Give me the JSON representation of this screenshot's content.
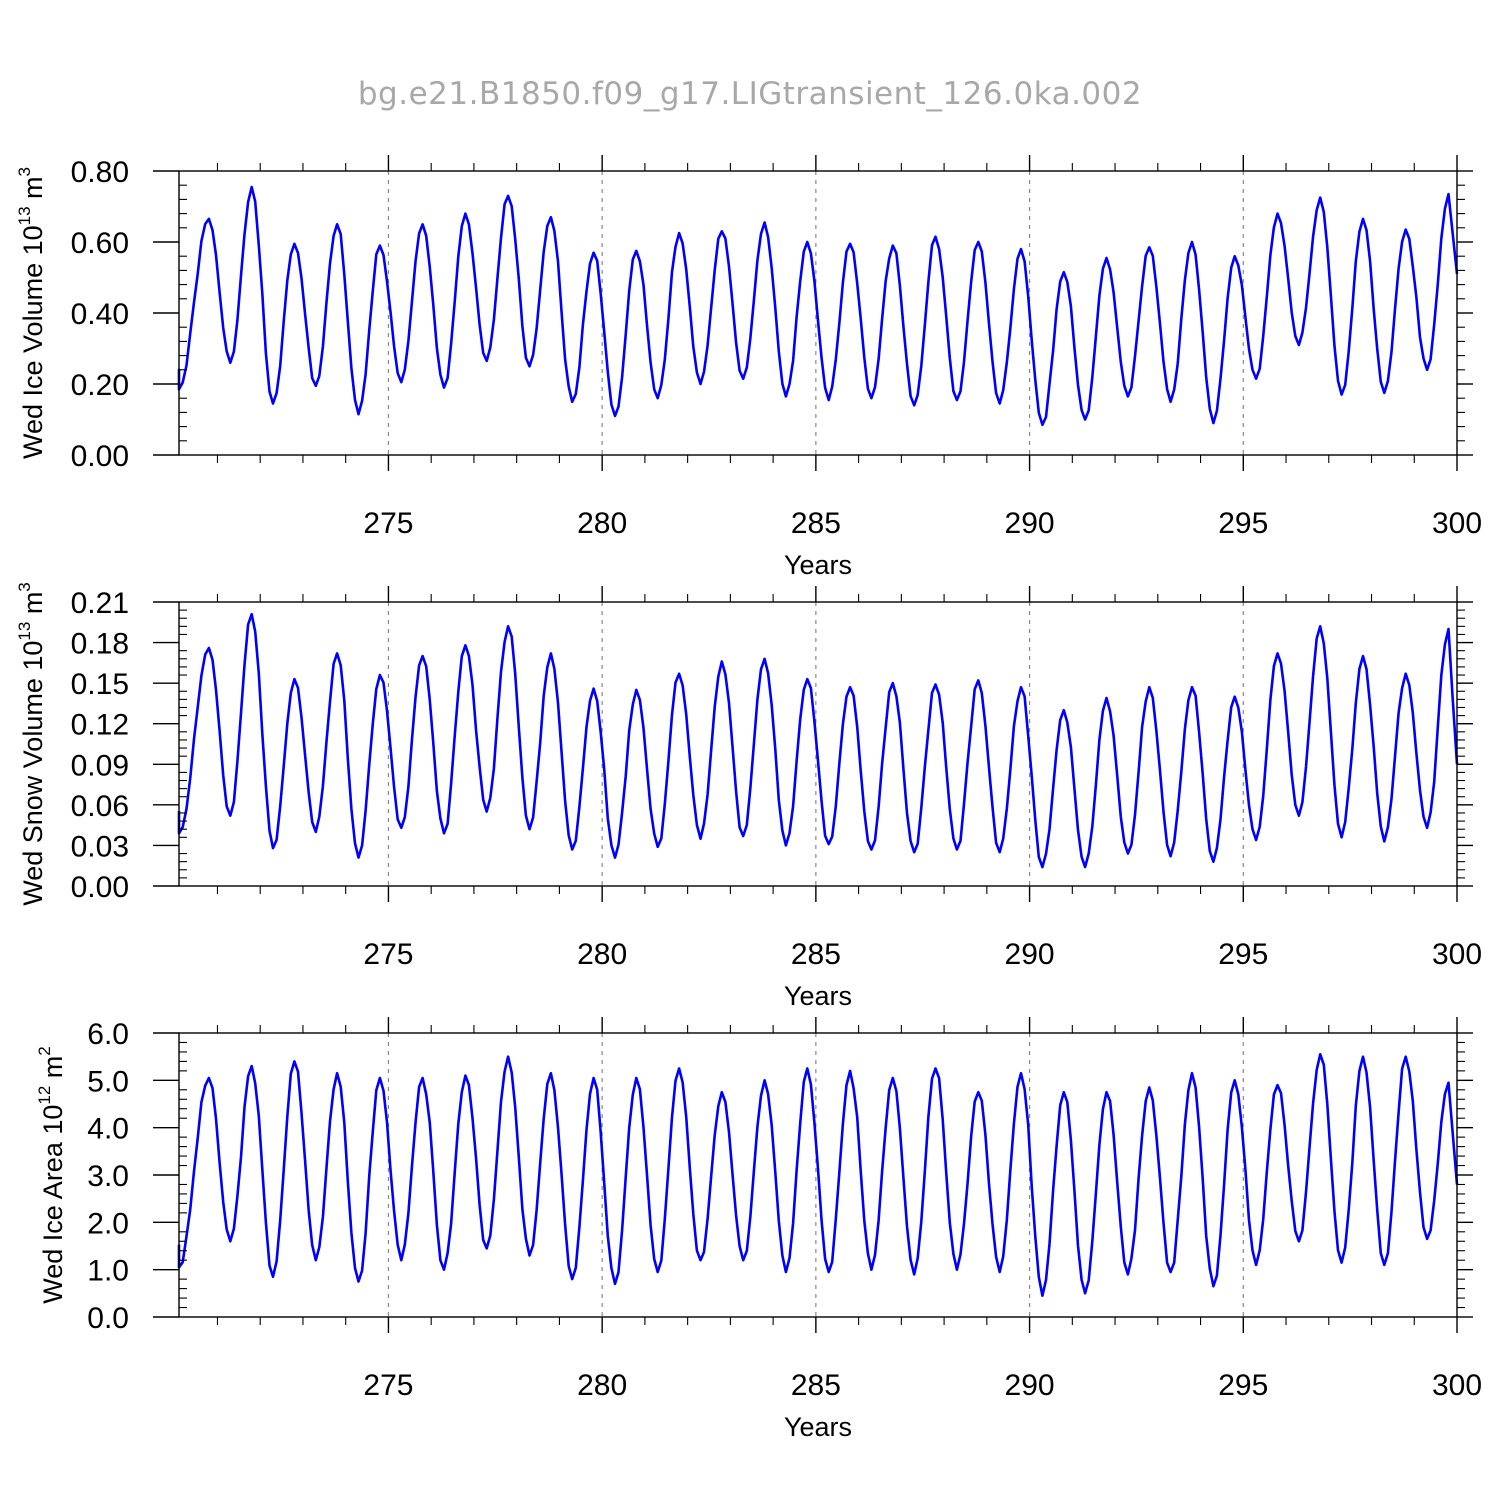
{
  "title": "bg.e21.B1850.f09_g17.LIGtransient_126.0ka.002",
  "colors": {
    "line": "#0000ff",
    "axis": "#000000",
    "grid": "#888888",
    "title": "#a8a8a8"
  },
  "chart_data": [
    {
      "type": "line",
      "ylabel_main": "Wed Ice Volume 10",
      "ylabel_exp": "13",
      "ylabel_unit": " m",
      "ylabel_unit_exp": "3",
      "xlabel": "Years",
      "xlim": [
        270.1,
        300.0
      ],
      "ylim": [
        0.0,
        0.8
      ],
      "xticks": [
        275,
        280,
        285,
        290,
        295,
        300
      ],
      "yticks": [
        0.0,
        0.2,
        0.4,
        0.6,
        0.8
      ],
      "ytick_labels": [
        "0.00",
        "0.20",
        "0.40",
        "0.60",
        "0.80"
      ],
      "grid": "vertical dashed at major x ticks",
      "seed": 1,
      "series": [
        {
          "min_at": 270.1,
          "peaks": [
            [
              270.8,
              0.665
            ],
            [
              271.8,
              0.755
            ],
            [
              272.8,
              0.595
            ],
            [
              273.8,
              0.65
            ],
            [
              274.8,
              0.59
            ],
            [
              275.8,
              0.65
            ],
            [
              276.8,
              0.68
            ],
            [
              277.8,
              0.73
            ],
            [
              278.8,
              0.67
            ],
            [
              279.8,
              0.57
            ],
            [
              280.8,
              0.575
            ],
            [
              281.8,
              0.625
            ],
            [
              282.8,
              0.63
            ],
            [
              283.8,
              0.655
            ],
            [
              284.8,
              0.6
            ],
            [
              285.8,
              0.595
            ],
            [
              286.8,
              0.59
            ],
            [
              287.8,
              0.615
            ],
            [
              288.8,
              0.6
            ],
            [
              289.8,
              0.58
            ],
            [
              290.8,
              0.515
            ],
            [
              291.8,
              0.555
            ],
            [
              292.8,
              0.585
            ],
            [
              293.8,
              0.6
            ],
            [
              294.8,
              0.56
            ],
            [
              295.8,
              0.68
            ],
            [
              296.8,
              0.725
            ],
            [
              297.8,
              0.665
            ],
            [
              298.8,
              0.635
            ],
            [
              299.8,
              0.735
            ]
          ],
          "troughs": [
            [
              270.1,
              0.185
            ],
            [
              271.3,
              0.26
            ],
            [
              272.3,
              0.145
            ],
            [
              273.3,
              0.195
            ],
            [
              274.3,
              0.115
            ],
            [
              275.3,
              0.205
            ],
            [
              276.3,
              0.19
            ],
            [
              277.3,
              0.265
            ],
            [
              278.3,
              0.25
            ],
            [
              279.3,
              0.15
            ],
            [
              280.3,
              0.11
            ],
            [
              281.3,
              0.16
            ],
            [
              282.3,
              0.2
            ],
            [
              283.3,
              0.215
            ],
            [
              284.3,
              0.165
            ],
            [
              285.3,
              0.155
            ],
            [
              286.3,
              0.16
            ],
            [
              287.3,
              0.14
            ],
            [
              288.3,
              0.155
            ],
            [
              289.3,
              0.145
            ],
            [
              290.3,
              0.085
            ],
            [
              291.3,
              0.1
            ],
            [
              292.3,
              0.165
            ],
            [
              293.3,
              0.15
            ],
            [
              294.3,
              0.09
            ],
            [
              295.3,
              0.215
            ],
            [
              296.3,
              0.31
            ],
            [
              297.3,
              0.17
            ],
            [
              298.3,
              0.175
            ],
            [
              299.3,
              0.24
            ]
          ],
          "end_value": 0.51
        }
      ]
    },
    {
      "type": "line",
      "ylabel_main": "Wed Snow Volume 10",
      "ylabel_exp": "13",
      "ylabel_unit": " m",
      "ylabel_unit_exp": "3",
      "xlabel": "Years",
      "xlim": [
        270.1,
        300.0
      ],
      "ylim": [
        0.0,
        0.21
      ],
      "xticks": [
        275,
        280,
        285,
        290,
        295,
        300
      ],
      "yticks": [
        0.0,
        0.03,
        0.06,
        0.09,
        0.12,
        0.15,
        0.18,
        0.21
      ],
      "ytick_labels": [
        "0.00",
        "0.03",
        "0.06",
        "0.09",
        "0.12",
        "0.15",
        "0.18",
        "0.21"
      ],
      "grid": "vertical dashed at major x ticks",
      "seed": 2,
      "series": [
        {
          "peaks": [
            [
              270.8,
              0.176
            ],
            [
              271.8,
              0.201
            ],
            [
              272.8,
              0.153
            ],
            [
              273.8,
              0.172
            ],
            [
              274.8,
              0.156
            ],
            [
              275.8,
              0.17
            ],
            [
              276.8,
              0.178
            ],
            [
              277.8,
              0.192
            ],
            [
              278.8,
              0.172
            ],
            [
              279.8,
              0.146
            ],
            [
              280.8,
              0.145
            ],
            [
              281.8,
              0.157
            ],
            [
              282.8,
              0.166
            ],
            [
              283.8,
              0.168
            ],
            [
              284.8,
              0.153
            ],
            [
              285.8,
              0.147
            ],
            [
              286.8,
              0.15
            ],
            [
              287.8,
              0.149
            ],
            [
              288.8,
              0.152
            ],
            [
              289.8,
              0.147
            ],
            [
              290.8,
              0.13
            ],
            [
              291.8,
              0.139
            ],
            [
              292.8,
              0.147
            ],
            [
              293.8,
              0.147
            ],
            [
              294.8,
              0.14
            ],
            [
              295.8,
              0.172
            ],
            [
              296.8,
              0.192
            ],
            [
              297.8,
              0.17
            ],
            [
              298.8,
              0.157
            ],
            [
              299.8,
              0.19
            ]
          ],
          "troughs": [
            [
              270.1,
              0.039
            ],
            [
              271.3,
              0.052
            ],
            [
              272.3,
              0.028
            ],
            [
              273.3,
              0.04
            ],
            [
              274.3,
              0.021
            ],
            [
              275.3,
              0.043
            ],
            [
              276.3,
              0.039
            ],
            [
              277.3,
              0.055
            ],
            [
              278.3,
              0.042
            ],
            [
              279.3,
              0.027
            ],
            [
              280.3,
              0.021
            ],
            [
              281.3,
              0.029
            ],
            [
              282.3,
              0.035
            ],
            [
              283.3,
              0.037
            ],
            [
              284.3,
              0.03
            ],
            [
              285.3,
              0.031
            ],
            [
              286.3,
              0.027
            ],
            [
              287.3,
              0.025
            ],
            [
              288.3,
              0.027
            ],
            [
              289.3,
              0.025
            ],
            [
              290.3,
              0.014
            ],
            [
              291.3,
              0.014
            ],
            [
              292.3,
              0.024
            ],
            [
              293.3,
              0.022
            ],
            [
              294.3,
              0.018
            ],
            [
              295.3,
              0.034
            ],
            [
              296.3,
              0.052
            ],
            [
              297.3,
              0.036
            ],
            [
              298.3,
              0.033
            ],
            [
              299.3,
              0.043
            ]
          ],
          "end_value": 0.09
        }
      ]
    },
    {
      "type": "line",
      "ylabel_main": "Wed Ice Area 10",
      "ylabel_exp": "12",
      "ylabel_unit": " m",
      "ylabel_unit_exp": "2",
      "xlabel": "Years",
      "xlim": [
        270.1,
        300.0
      ],
      "ylim": [
        0.0,
        6.0
      ],
      "xticks": [
        275,
        280,
        285,
        290,
        295,
        300
      ],
      "yticks": [
        0.0,
        1.0,
        2.0,
        3.0,
        4.0,
        5.0,
        6.0
      ],
      "ytick_labels": [
        "0.0",
        "1.0",
        "2.0",
        "3.0",
        "4.0",
        "5.0",
        "6.0"
      ],
      "grid": "vertical dashed at major x ticks",
      "seed": 3,
      "series": [
        {
          "peaks": [
            [
              270.8,
              5.05
            ],
            [
              271.8,
              5.3
            ],
            [
              272.8,
              5.4
            ],
            [
              273.8,
              5.15
            ],
            [
              274.8,
              5.05
            ],
            [
              275.8,
              5.05
            ],
            [
              276.8,
              5.1
            ],
            [
              277.8,
              5.5
            ],
            [
              278.8,
              5.15
            ],
            [
              279.8,
              5.05
            ],
            [
              280.8,
              5.05
            ],
            [
              281.8,
              5.25
            ],
            [
              282.8,
              4.75
            ],
            [
              283.8,
              5.0
            ],
            [
              284.8,
              5.25
            ],
            [
              285.8,
              5.2
            ],
            [
              286.8,
              5.05
            ],
            [
              287.8,
              5.25
            ],
            [
              288.8,
              4.75
            ],
            [
              289.8,
              5.15
            ],
            [
              290.8,
              4.75
            ],
            [
              291.8,
              4.75
            ],
            [
              292.8,
              4.85
            ],
            [
              293.8,
              5.15
            ],
            [
              294.8,
              5.0
            ],
            [
              295.8,
              4.9
            ],
            [
              296.8,
              5.55
            ],
            [
              297.8,
              5.5
            ],
            [
              298.8,
              5.5
            ],
            [
              299.8,
              4.95
            ]
          ],
          "troughs": [
            [
              270.1,
              1.05
            ],
            [
              271.3,
              1.6
            ],
            [
              272.3,
              0.85
            ],
            [
              273.3,
              1.2
            ],
            [
              274.3,
              0.75
            ],
            [
              275.3,
              1.2
            ],
            [
              276.3,
              1.0
            ],
            [
              277.3,
              1.45
            ],
            [
              278.3,
              1.3
            ],
            [
              279.3,
              0.8
            ],
            [
              280.3,
              0.7
            ],
            [
              281.3,
              0.95
            ],
            [
              282.3,
              1.2
            ],
            [
              283.3,
              1.2
            ],
            [
              284.3,
              0.95
            ],
            [
              285.3,
              0.95
            ],
            [
              286.3,
              1.0
            ],
            [
              287.3,
              0.9
            ],
            [
              288.3,
              1.0
            ],
            [
              289.3,
              0.95
            ],
            [
              290.3,
              0.45
            ],
            [
              291.3,
              0.5
            ],
            [
              292.3,
              0.9
            ],
            [
              293.3,
              0.95
            ],
            [
              294.3,
              0.65
            ],
            [
              295.3,
              1.1
            ],
            [
              296.3,
              1.6
            ],
            [
              297.3,
              1.15
            ],
            [
              298.3,
              1.1
            ],
            [
              299.3,
              1.65
            ]
          ],
          "end_value": 2.8
        }
      ]
    }
  ]
}
